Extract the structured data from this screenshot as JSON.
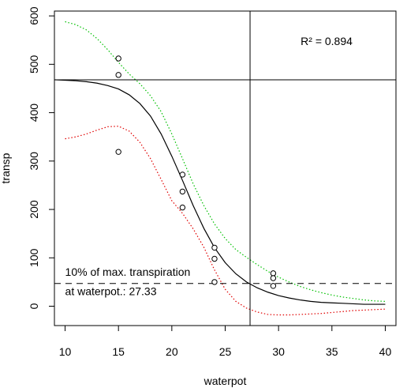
{
  "chart_data": {
    "type": "scatter",
    "xlabel": "waterpot",
    "ylabel": "transp",
    "xlim": [
      9,
      41
    ],
    "ylim": [
      -40,
      610
    ],
    "x_ticks": [
      10,
      15,
      20,
      25,
      30,
      35,
      40
    ],
    "y_ticks": [
      0,
      100,
      200,
      300,
      400,
      500,
      600
    ],
    "x_tick_labels": [
      "10",
      "15",
      "20",
      "25",
      "30",
      "35",
      "40"
    ],
    "y_tick_labels": [
      "0",
      "100",
      "200",
      "300",
      "400",
      "500",
      "600"
    ],
    "points": [
      {
        "x": 15,
        "y": 512
      },
      {
        "x": 15,
        "y": 478
      },
      {
        "x": 15,
        "y": 319
      },
      {
        "x": 21,
        "y": 272
      },
      {
        "x": 21,
        "y": 237
      },
      {
        "x": 21,
        "y": 204
      },
      {
        "x": 24,
        "y": 121
      },
      {
        "x": 24,
        "y": 98
      },
      {
        "x": 24,
        "y": 50
      },
      {
        "x": 29.5,
        "y": 68
      },
      {
        "x": 29.5,
        "y": 58
      },
      {
        "x": 29.5,
        "y": 42
      }
    ],
    "series": [
      {
        "line": "solid",
        "color": "#000000",
        "x": [
          9,
          10,
          11,
          12,
          13,
          14,
          15,
          16,
          17,
          18,
          19,
          20,
          21,
          22,
          23,
          24,
          25,
          26,
          27,
          28,
          29,
          30,
          31,
          32,
          33,
          34,
          35,
          36,
          37,
          38,
          39,
          40
        ],
        "y": [
          468,
          467,
          466,
          464,
          461,
          456,
          449,
          437,
          419,
          393,
          356,
          310,
          260,
          208,
          161,
          121,
          90,
          67,
          50,
          38,
          29,
          22,
          17,
          13,
          10,
          8,
          7,
          6,
          5,
          4,
          4,
          4
        ]
      },
      {
        "line": "dotted",
        "color": "#00c000",
        "x": [
          10,
          11,
          12,
          13,
          14,
          15,
          16,
          17,
          18,
          19,
          20,
          21,
          22,
          23,
          24,
          25,
          26,
          27,
          28,
          29,
          30,
          31,
          32,
          33,
          34,
          35,
          36,
          37,
          38,
          39,
          40
        ],
        "y": [
          588,
          582,
          571,
          553,
          530,
          504,
          480,
          460,
          435,
          402,
          356,
          305,
          253,
          208,
          170,
          140,
          117,
          101,
          86,
          72,
          60,
          50,
          41,
          34,
          28,
          23,
          19,
          16,
          13,
          11,
          10
        ]
      },
      {
        "line": "dotted",
        "color": "#e00000",
        "x": [
          10,
          11,
          12,
          13,
          14,
          15,
          16,
          17,
          18,
          19,
          20,
          21,
          22,
          23,
          24,
          25,
          26,
          27,
          28,
          29,
          30,
          31,
          32,
          33,
          34,
          35,
          36,
          37,
          38,
          39,
          40
        ],
        "y": [
          346,
          350,
          356,
          364,
          371,
          372,
          362,
          339,
          305,
          262,
          218,
          192,
          160,
          122,
          75,
          35,
          10,
          -4,
          -12,
          -17,
          -18,
          -18,
          -17,
          -16,
          -15,
          -13,
          -11,
          -9,
          -8,
          -7,
          -6
        ]
      }
    ],
    "reference_lines": [
      {
        "orientation": "horizontal",
        "value": 468,
        "line": "solid"
      },
      {
        "orientation": "vertical",
        "value": 27.33,
        "line": "solid"
      },
      {
        "orientation": "horizontal",
        "value": 47,
        "line": "dashed"
      }
    ],
    "annotations": [
      {
        "label": "R² = 0.894",
        "x": 34.5,
        "y": 540
      },
      {
        "label": "10% of max. transpiration",
        "x": 10,
        "y": 63
      },
      {
        "label": "at waterpot.: 27.33",
        "x": 10,
        "y": 23
      }
    ],
    "grid": false,
    "legend": "none"
  }
}
